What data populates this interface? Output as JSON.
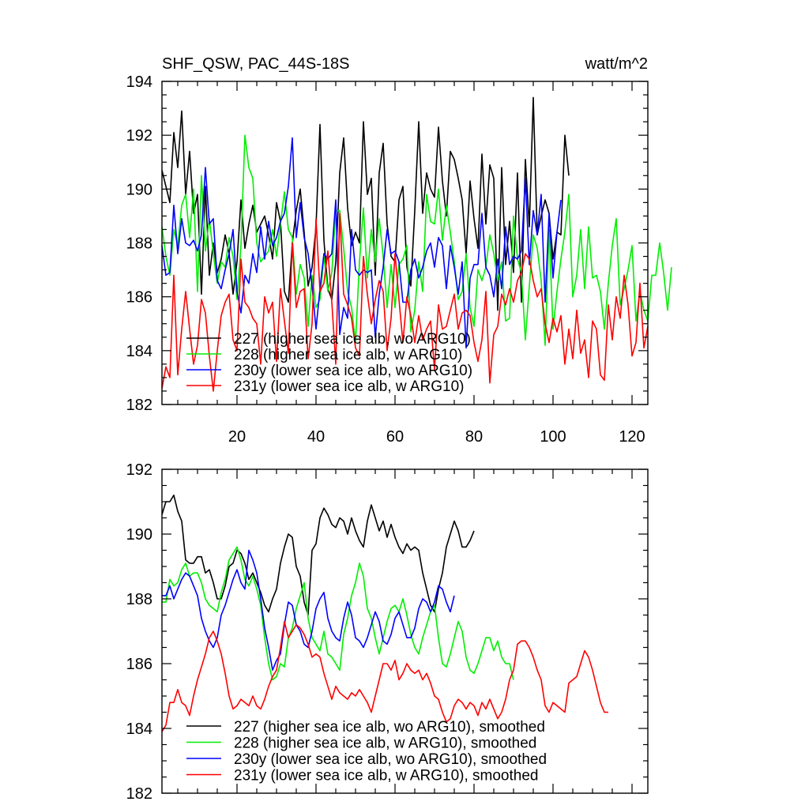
{
  "chart_data": [
    {
      "type": "line",
      "title": "SHF_QSW, PAC_44S-18S",
      "units_label": "watt/m^2",
      "xlim": [
        1,
        124
      ],
      "ylim": [
        182,
        194
      ],
      "x_ticks": [
        20,
        40,
        60,
        80,
        100,
        120
      ],
      "x_tick_labels": [
        "20",
        "40",
        "60",
        "80",
        "100",
        "120"
      ],
      "y_ticks": [
        182,
        184,
        186,
        188,
        190,
        192,
        194
      ],
      "y_tick_labels": [
        "182",
        "184",
        "186",
        "188",
        "190",
        "192",
        "194"
      ],
      "legend_position": "lower-left",
      "series": [
        {
          "name": "227 (higher sea ice alb, wo ARG10)",
          "color": "#000000",
          "values": [
            190.7,
            190.1,
            189.5,
            192.1,
            190.8,
            192.9,
            189.8,
            191.4,
            189.1,
            189.8,
            186.1,
            190.1,
            186.8,
            188.0,
            186.9,
            187.4,
            188.3,
            187.6,
            186.1,
            187.3,
            189.6,
            187.8,
            188.7,
            189.4,
            188.4,
            188.7,
            189.0,
            188.3,
            187.4,
            189.5,
            188.8,
            186.2,
            185.8,
            188.0,
            189.2,
            190.0,
            188.4,
            186.4,
            187.1,
            188.6,
            192.4,
            188.1,
            186.3,
            185.9,
            187.3,
            190.6,
            191.9,
            189.3,
            187.9,
            188.4,
            188.0,
            192.5,
            189.8,
            190.4,
            186.8,
            190.6,
            191.7,
            188.7,
            187.5,
            187.3,
            189.6,
            190.1,
            187.1,
            186.4,
            189.2,
            192.5,
            189.1,
            190.6,
            190.0,
            189.7,
            192.3,
            190.3,
            189.0,
            191.4,
            191.1,
            190.4,
            189.6,
            187.6,
            190.3,
            188.9,
            187.8,
            191.3,
            188.7,
            190.9,
            190.4,
            185.5,
            190.8,
            187.2,
            188.8,
            186.9,
            190.6,
            185.8,
            191.1,
            188.6,
            193.4,
            188.3,
            189.0,
            189.6,
            189.1,
            187.4,
            188.4,
            188.3,
            192.0,
            190.5
          ]
        },
        {
          "name": "228 (higher sea ice alb, w ARG10)",
          "color": "#00ee00",
          "values": [
            188.6,
            187.5,
            186.8,
            188.5,
            187.9,
            189.4,
            189.8,
            188.2,
            190.0,
            186.2,
            190.5,
            187.7,
            188.9,
            187.6,
            186.5,
            187.3,
            187.1,
            188.2,
            187.5,
            185.9,
            187.9,
            192.0,
            190.8,
            190.4,
            188.0,
            187.3,
            187.5,
            187.7,
            188.5,
            187.5,
            188.7,
            189.9,
            188.5,
            188.2,
            186.1,
            187.2,
            186.7,
            184.9,
            186.8,
            185.6,
            185.9,
            187.5,
            186.2,
            186.9,
            189.2,
            189.2,
            187.8,
            186.2,
            185.6,
            184.3,
            187.3,
            189.3,
            186.7,
            188.5,
            187.3,
            188.9,
            187.5,
            185.6,
            187.2,
            185.6,
            187.2,
            187.4,
            187.9,
            184.7,
            185.5,
            187.3,
            186.2,
            189.8,
            188.8,
            188.7,
            190.0,
            188.1,
            189.4,
            188.4,
            187.3,
            185.9,
            186.2,
            187.6,
            185.6,
            184.9,
            187.0,
            186.6,
            187.1,
            188.3,
            187.6,
            186.6,
            187.3,
            185.1,
            185.2,
            189.0,
            187.4,
            186.9,
            184.4,
            186.4,
            188.3,
            187.8,
            186.6,
            184.2,
            188.5,
            184.8,
            186.2,
            187.4,
            188.4,
            189.8,
            186.0,
            186.8,
            188.5,
            186.3,
            188.6,
            186.7,
            186.8,
            186.2,
            184.8,
            186.5,
            187.9,
            188.9,
            185.7,
            186.3,
            187.0,
            187.9,
            185.1,
            186.2,
            185.5,
            185.1,
            186.8,
            186.8,
            188.0,
            186.9,
            185.5,
            187.1
          ]
        },
        {
          "name": "230y (lower sea ice alb, wo ARG10)",
          "color": "#0000ff",
          "values": [
            187.9,
            186.8,
            186.9,
            189.4,
            187.6,
            188.9,
            188.0,
            187.9,
            188.1,
            187.7,
            188.3,
            190.8,
            188.7,
            188.9,
            186.6,
            186.3,
            187.0,
            187.6,
            188.5,
            186.2,
            185.4,
            186.8,
            186.5,
            187.6,
            186.9,
            188.6,
            187.4,
            188.8,
            187.9,
            188.2,
            188.8,
            189.1,
            190.1,
            191.9,
            188.2,
            189.5,
            188.2,
            187.6,
            186.4,
            184.8,
            186.3,
            187.6,
            187.4,
            187.6,
            189.6,
            184.6,
            185.6,
            185.2,
            188.5,
            187.0,
            186.8,
            187.0,
            186.9,
            187.0,
            184.5,
            186.1,
            187.1,
            188.5,
            187.6,
            187.7,
            187.3,
            185.8,
            185.8,
            187.0,
            187.4,
            186.7,
            187.1,
            187.7,
            188.0,
            187.1,
            188.2,
            187.9,
            186.3,
            187.9,
            187.1,
            186.1,
            187.3,
            184.1,
            186.7,
            187.2,
            187.2,
            189.1,
            187.1,
            186.8,
            186.0,
            187.4,
            186.3,
            188.6,
            187.2,
            187.5,
            187.4,
            187.7,
            190.4,
            187.2,
            189.2,
            188.3,
            189.8,
            185.8,
            189.1,
            186.7,
            188.4,
            189.6
          ]
        },
        {
          "name": "231y (lower sea ice alb, w ARG10)",
          "color": "#ff0000",
          "values": [
            182.6,
            183.4,
            183.0,
            186.8,
            183.1,
            184.8,
            186.2,
            184.8,
            183.5,
            184.2,
            185.9,
            185.4,
            183.8,
            182.5,
            184.0,
            185.3,
            185.8,
            186.1,
            184.4,
            184.0,
            187.4,
            185.8,
            185.6,
            185.2,
            185.0,
            183.5,
            186.0,
            185.4,
            185.8,
            183.6,
            186.3,
            185.1,
            183.9,
            188.0,
            185.6,
            186.2,
            186.3,
            183.7,
            185.0,
            188.9,
            186.2,
            186.5,
            187.7,
            185.8,
            183.5,
            189.1,
            186.1,
            185.7,
            185.2,
            184.1,
            183.8,
            187.5,
            186.1,
            185.0,
            185.9,
            186.6,
            186.2,
            184.0,
            185.2,
            187.6,
            185.9,
            184.3,
            186.0,
            185.3,
            184.3,
            185.3,
            184.4,
            184.8,
            185.1,
            183.3,
            185.7,
            184.8,
            184.9,
            185.5,
            186.1,
            184.8,
            185.4,
            185.5,
            185.3,
            184.3,
            183.6,
            184.4,
            186.2,
            182.8,
            184.6,
            184.9,
            186.1,
            185.7,
            186.3,
            185.8,
            186.6,
            186.9,
            187.6,
            187.4,
            186.6,
            186.0,
            186.3,
            185.0,
            184.3,
            185.2,
            184.7,
            185.3,
            183.5,
            184.8,
            183.7,
            185.5,
            183.9,
            184.4,
            183.0,
            185.1,
            184.8,
            183.1,
            182.9,
            185.7,
            184.4,
            186.0,
            185.2,
            186.8,
            185.7,
            183.8,
            184.3,
            186.5,
            184.1,
            184.9
          ]
        }
      ]
    },
    {
      "type": "line",
      "xlim": [
        1,
        124
      ],
      "ylim": [
        182,
        192
      ],
      "x_ticks": [
        20,
        40,
        60,
        80,
        100,
        120
      ],
      "y_ticks": [
        182,
        184,
        186,
        188,
        190,
        192
      ],
      "y_tick_labels": [
        "182",
        "184",
        "186",
        "188",
        "190",
        "192"
      ],
      "legend_position": "lower-left",
      "series": [
        {
          "name": "227 (higher sea ice alb, wo ARG10), smoothed",
          "color": "#000000",
          "values": [
            190.6,
            191.0,
            191.0,
            191.2,
            190.7,
            190.4,
            189.2,
            189.1,
            189.1,
            189.3,
            189.3,
            188.8,
            188.9,
            188.5,
            188.0,
            188.0,
            188.4,
            189.0,
            189.1,
            189.5,
            189.4,
            189.1,
            188.6,
            188.8,
            188.5,
            188.2,
            187.8,
            187.6,
            188.0,
            188.3,
            189.1,
            189.6,
            190.0,
            189.9,
            189.0,
            188.7,
            187.9,
            187.5,
            189.5,
            189.7,
            190.5,
            190.8,
            190.6,
            190.3,
            190.2,
            190.5,
            190.4,
            190.0,
            190.5,
            190.1,
            189.8,
            189.6,
            190.4,
            190.9,
            190.5,
            190.1,
            190.4,
            189.9,
            190.3,
            189.9,
            189.6,
            189.4,
            189.7,
            189.5,
            189.6,
            189.5,
            188.8,
            188.3,
            187.8,
            187.6,
            188.3,
            188.8,
            189.6,
            190.0,
            190.4,
            190.1,
            189.6,
            189.6,
            189.8,
            190.1
          ]
        },
        {
          "name": "228 (higher sea ice alb, w ARG10), smoothed",
          "color": "#00ee00",
          "values": [
            187.9,
            187.9,
            188.6,
            188.4,
            188.5,
            188.9,
            189.1,
            188.7,
            188.8,
            188.8,
            188.5,
            188.0,
            187.8,
            187.7,
            187.6,
            188.2,
            188.6,
            189.2,
            189.4,
            189.6,
            189.2,
            188.6,
            188.4,
            188.7,
            188.3,
            187.8,
            186.8,
            186.0,
            185.5,
            185.6,
            186.0,
            185.9,
            186.8,
            187.1,
            187.7,
            188.1,
            188.5,
            187.4,
            186.8,
            186.6,
            186.4,
            187.0,
            186.3,
            186.2,
            186.0,
            185.8,
            186.9,
            187.4,
            188.1,
            188.5,
            189.1,
            188.7,
            187.7,
            187.4,
            186.8,
            186.3,
            186.8,
            187.3,
            187.7,
            187.8,
            187.6,
            188.0,
            187.5,
            186.9,
            186.5,
            186.3,
            186.8,
            187.2,
            187.6,
            187.8,
            186.8,
            186.0,
            185.9,
            186.3,
            186.8,
            187.3,
            187.0,
            186.2,
            185.8,
            185.7,
            186.0,
            186.4,
            186.8,
            186.8,
            186.4,
            186.7,
            186.2,
            186.0,
            186.0,
            185.5
          ]
        },
        {
          "name": "230y (lower sea ice alb, wo ARG10), smoothed",
          "color": "#0000ff",
          "values": [
            188.1,
            188.1,
            188.4,
            188.0,
            188.3,
            188.6,
            188.8,
            188.7,
            188.4,
            188.1,
            187.4,
            187.0,
            186.7,
            186.5,
            186.8,
            187.5,
            187.8,
            188.2,
            188.6,
            188.9,
            188.5,
            188.3,
            189.5,
            189.2,
            188.8,
            188.0,
            187.1,
            186.5,
            185.8,
            186.1,
            186.3,
            187.2,
            187.9,
            187.8,
            187.2,
            187.0,
            186.6,
            186.5,
            187.0,
            187.7,
            188.0,
            188.2,
            187.4,
            187.0,
            186.8,
            186.7,
            187.4,
            187.9,
            187.5,
            186.8,
            186.7,
            186.5,
            186.8,
            187.2,
            187.6,
            187.3,
            186.7,
            186.6,
            186.9,
            187.4,
            187.6,
            187.2,
            186.8,
            186.8,
            187.1,
            187.7,
            188.0,
            187.9,
            187.6,
            187.9,
            188.4,
            188.3,
            187.9,
            187.6,
            188.1
          ]
        },
        {
          "name": "231y (lower sea ice alb, w ARG10), smoothed",
          "color": "#ff0000",
          "values": [
            183.9,
            184.1,
            184.8,
            184.8,
            185.2,
            184.8,
            184.7,
            184.4,
            185.0,
            185.5,
            185.9,
            186.3,
            186.8,
            187.0,
            186.7,
            186.3,
            185.7,
            185.0,
            184.6,
            184.7,
            184.9,
            184.8,
            184.7,
            185.0,
            184.7,
            184.6,
            184.9,
            185.3,
            185.6,
            185.8,
            186.5,
            187.3,
            186.8,
            187.0,
            187.2,
            187.1,
            186.9,
            186.6,
            186.2,
            186.3,
            186.2,
            185.7,
            185.3,
            184.9,
            185.3,
            185.1,
            185.0,
            184.9,
            185.1,
            185.0,
            185.2,
            185.0,
            184.8,
            184.5,
            185.0,
            185.5,
            186.0,
            186.0,
            185.8,
            186.1,
            185.5,
            185.7,
            186.0,
            185.8,
            185.7,
            185.8,
            185.5,
            185.7,
            185.4,
            185.0,
            184.9,
            184.5,
            184.2,
            184.3,
            184.7,
            184.9,
            184.8,
            184.6,
            184.8,
            184.7,
            184.4,
            184.8,
            184.6,
            184.9,
            184.6,
            184.3,
            184.5,
            184.9,
            185.5,
            185.8,
            186.6,
            186.7,
            186.7,
            186.5,
            186.2,
            185.8,
            185.5,
            184.7,
            184.5,
            184.8,
            184.7,
            184.6,
            184.5,
            185.4,
            185.5,
            185.6,
            186.0,
            186.4,
            186.2,
            185.8,
            185.3,
            184.8,
            184.5,
            184.5
          ]
        }
      ]
    }
  ]
}
